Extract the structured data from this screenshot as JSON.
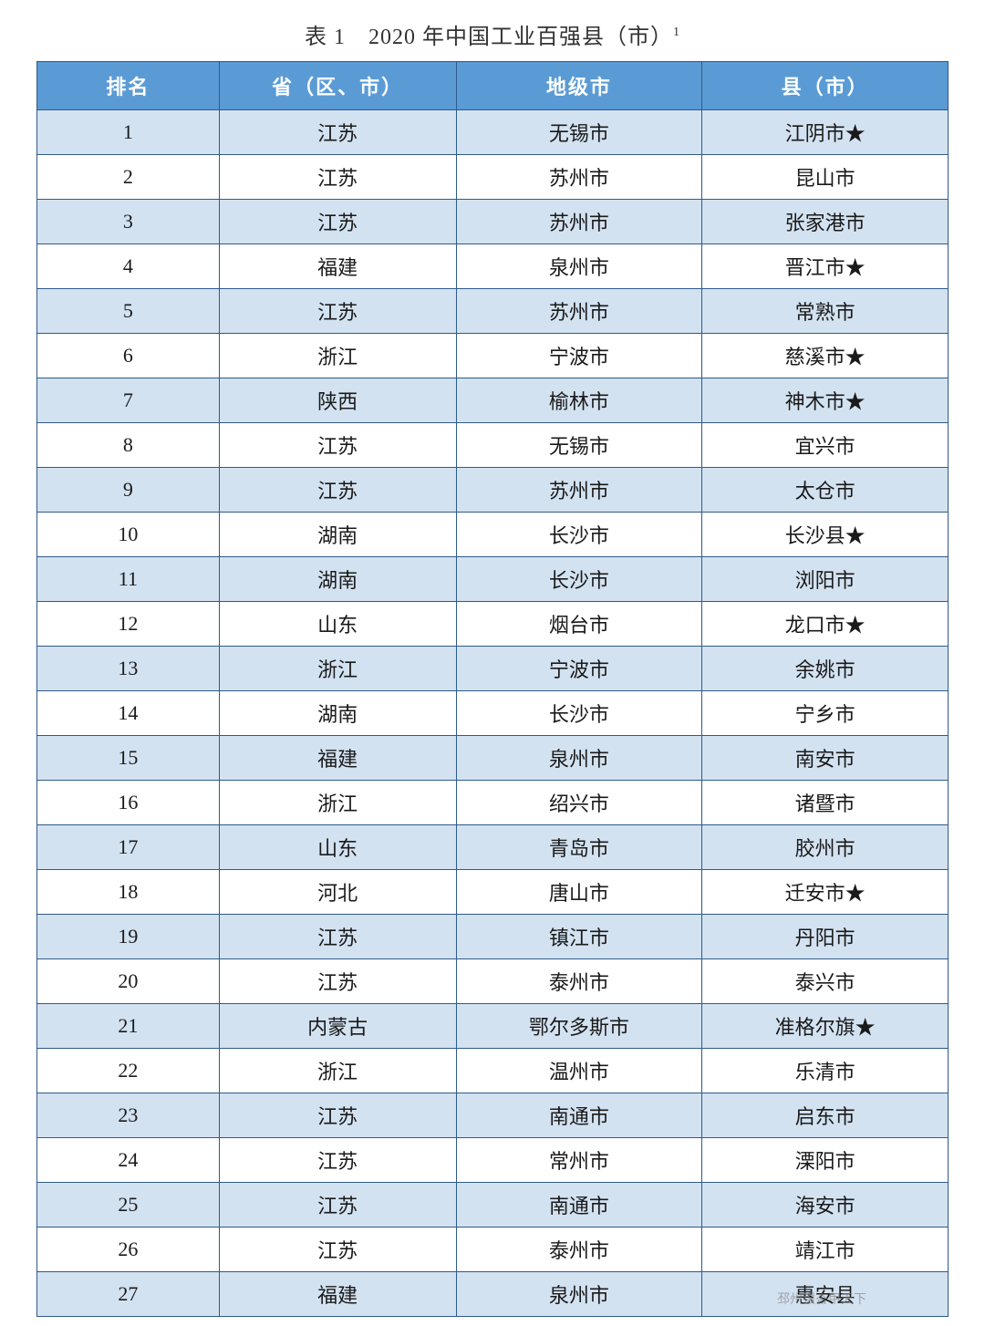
{
  "title_prefix": "表 1　2020 年中国工业百强县（市）",
  "title_sup": "1",
  "table": {
    "header_bg": "#5b9bd5",
    "header_text_color": "#ffffff",
    "odd_row_bg": "#d3e2f1",
    "even_row_bg": "#ffffff",
    "border_color": "#2e5a8a",
    "font_size_header": 22,
    "font_size_cell": 22,
    "columns": [
      "排名",
      "省（区、市）",
      "地级市",
      "县（市）"
    ],
    "rows": [
      [
        "1",
        "江苏",
        "无锡市",
        "江阴市★"
      ],
      [
        "2",
        "江苏",
        "苏州市",
        "昆山市"
      ],
      [
        "3",
        "江苏",
        "苏州市",
        "张家港市"
      ],
      [
        "4",
        "福建",
        "泉州市",
        "晋江市★"
      ],
      [
        "5",
        "江苏",
        "苏州市",
        "常熟市"
      ],
      [
        "6",
        "浙江",
        "宁波市",
        "慈溪市★"
      ],
      [
        "7",
        "陕西",
        "榆林市",
        "神木市★"
      ],
      [
        "8",
        "江苏",
        "无锡市",
        "宜兴市"
      ],
      [
        "9",
        "江苏",
        "苏州市",
        "太仓市"
      ],
      [
        "10",
        "湖南",
        "长沙市",
        "长沙县★"
      ],
      [
        "11",
        "湖南",
        "长沙市",
        "浏阳市"
      ],
      [
        "12",
        "山东",
        "烟台市",
        "龙口市★"
      ],
      [
        "13",
        "浙江",
        "宁波市",
        "余姚市"
      ],
      [
        "14",
        "湖南",
        "长沙市",
        "宁乡市"
      ],
      [
        "15",
        "福建",
        "泉州市",
        "南安市"
      ],
      [
        "16",
        "浙江",
        "绍兴市",
        "诸暨市"
      ],
      [
        "17",
        "山东",
        "青岛市",
        "胶州市"
      ],
      [
        "18",
        "河北",
        "唐山市",
        "迁安市★"
      ],
      [
        "19",
        "江苏",
        "镇江市",
        "丹阳市"
      ],
      [
        "20",
        "江苏",
        "泰州市",
        "泰兴市"
      ],
      [
        "21",
        "内蒙古",
        "鄂尔多斯市",
        "准格尔旗★"
      ],
      [
        "22",
        "浙江",
        "温州市",
        "乐清市"
      ],
      [
        "23",
        "江苏",
        "南通市",
        "启东市"
      ],
      [
        "24",
        "江苏",
        "常州市",
        "溧阳市"
      ],
      [
        "25",
        "江苏",
        "南通市",
        "海安市"
      ],
      [
        "26",
        "江苏",
        "泰州市",
        "靖江市"
      ],
      [
        "27",
        "福建",
        "泉州市",
        "惠安县"
      ]
    ]
  },
  "footer_source": "邳州银杏甲天下"
}
